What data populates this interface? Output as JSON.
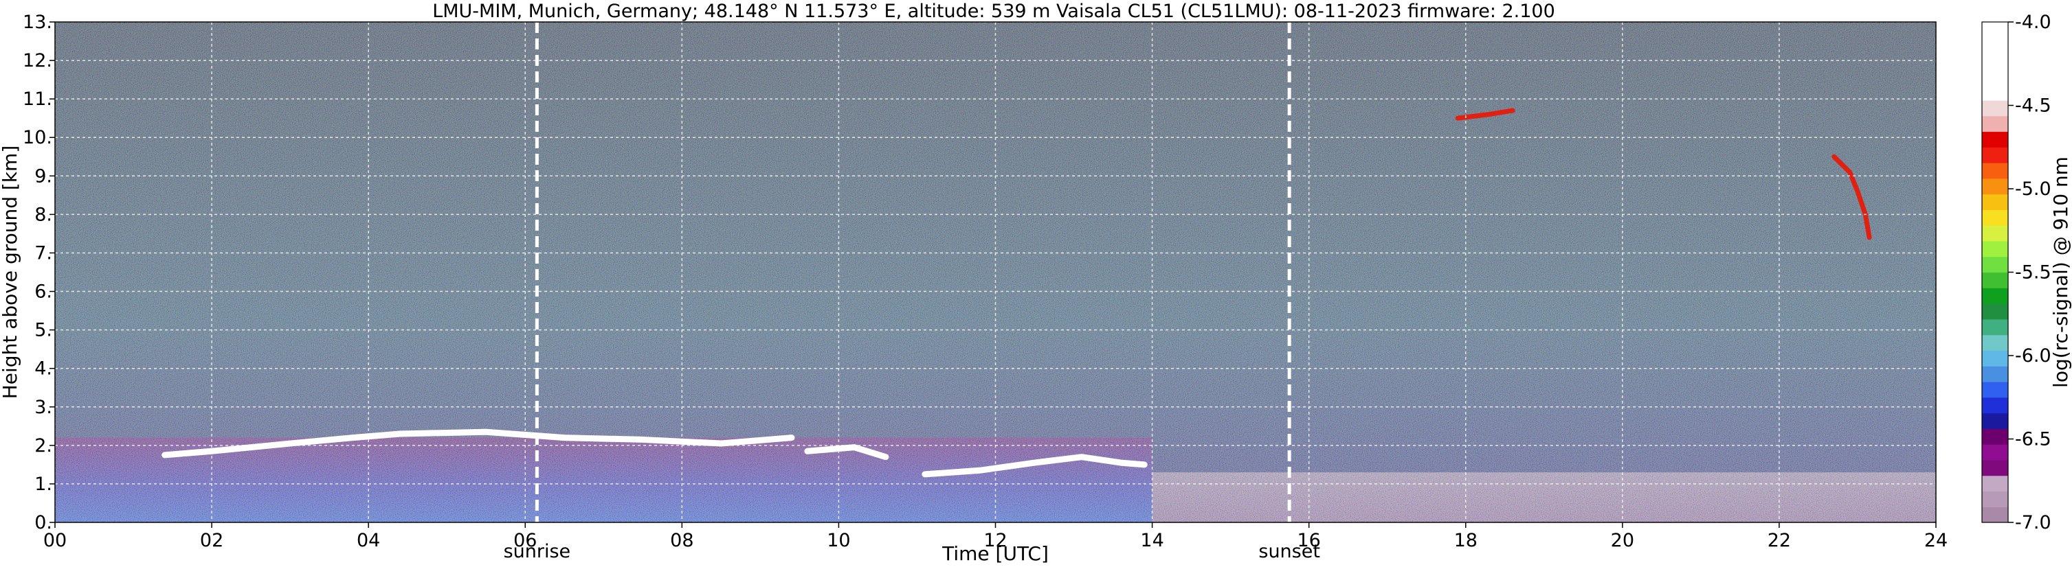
{
  "chart_data": {
    "type": "heatmap",
    "title": "LMU-MIM, Munich, Germany; 48.148° N 11.573° E, altitude: 539 m    Vaisala CL51 (CL51LMU): 08-11-2023    firmware: 2.100",
    "xlabel": "Time [UTC]",
    "ylabel": "Height above ground [km]",
    "xlim": [
      0,
      24
    ],
    "ylim": [
      0,
      13
    ],
    "x_ticks": [
      {
        "value": 0,
        "label": "00"
      },
      {
        "value": 2,
        "label": "02"
      },
      {
        "value": 4,
        "label": "04"
      },
      {
        "value": 6,
        "label": "06"
      },
      {
        "value": 8,
        "label": "08"
      },
      {
        "value": 10,
        "label": "10"
      },
      {
        "value": 12,
        "label": "12"
      },
      {
        "value": 14,
        "label": "14"
      },
      {
        "value": 16,
        "label": "16"
      },
      {
        "value": 18,
        "label": "18"
      },
      {
        "value": 20,
        "label": "20"
      },
      {
        "value": 22,
        "label": "22"
      },
      {
        "value": 24,
        "label": "24"
      }
    ],
    "y_ticks": [
      {
        "value": 0,
        "label": "0."
      },
      {
        "value": 1,
        "label": "1."
      },
      {
        "value": 2,
        "label": "2."
      },
      {
        "value": 3,
        "label": "3."
      },
      {
        "value": 4,
        "label": "4."
      },
      {
        "value": 5,
        "label": "5."
      },
      {
        "value": 6,
        "label": "6."
      },
      {
        "value": 7,
        "label": "7."
      },
      {
        "value": 8,
        "label": "8."
      },
      {
        "value": 9,
        "label": "9."
      },
      {
        "value": 10,
        "label": "10."
      },
      {
        "value": 11,
        "label": "11."
      },
      {
        "value": 12,
        "label": "12."
      },
      {
        "value": 13,
        "label": "13."
      }
    ],
    "grid": true,
    "events": [
      {
        "label": "sunrise",
        "time": 6.15
      },
      {
        "label": "sunset",
        "time": 15.75
      }
    ],
    "colorbar": {
      "label": "log(rc-signal) @ 910 nm",
      "range": [
        -7.0,
        -4.0
      ],
      "ticks": [
        {
          "value": -4.0,
          "label": "-4.0"
        },
        {
          "value": -4.5,
          "label": "-4.5"
        },
        {
          "value": -5.0,
          "label": "-5.0"
        },
        {
          "value": -5.5,
          "label": "-5.5"
        },
        {
          "value": -6.0,
          "label": "-6.0"
        },
        {
          "value": -6.5,
          "label": "-6.5"
        },
        {
          "value": -7.0,
          "label": "-7.0"
        }
      ],
      "colors": [
        "#a88aa8",
        "#b79ab7",
        "#c4a9c4",
        "#7e0a7e",
        "#900c90",
        "#6e006e",
        "#1a1aa0",
        "#2030d8",
        "#3060f0",
        "#4a90e0",
        "#60b8e8",
        "#70c8c8",
        "#40b080",
        "#209040",
        "#10a020",
        "#40c030",
        "#70e040",
        "#a0f040",
        "#d8f040",
        "#f8e020",
        "#f8c010",
        "#f89010",
        "#f86010",
        "#f02010",
        "#e00000",
        "#f0b0b0",
        "#f0d8d8",
        "#ffffff",
        "#ffffff",
        "#ffffff",
        "#ffffff",
        "#ffffff"
      ]
    },
    "features": [
      {
        "kind": "boundary layer top (cloud)",
        "color": "#ffffff",
        "points": [
          [
            1.4,
            1.75
          ],
          [
            2.0,
            1.85
          ],
          [
            3.0,
            2.05
          ],
          [
            3.8,
            2.2
          ],
          [
            4.4,
            2.3
          ],
          [
            5.5,
            2.35
          ],
          [
            6.5,
            2.2
          ],
          [
            7.5,
            2.15
          ],
          [
            8.5,
            2.05
          ],
          [
            9.4,
            2.2
          ]
        ]
      },
      {
        "kind": "boundary layer top (cloud)",
        "color": "#ffffff",
        "points": [
          [
            9.6,
            1.85
          ],
          [
            10.2,
            1.95
          ],
          [
            10.6,
            1.7
          ]
        ]
      },
      {
        "kind": "boundary layer top (cloud)",
        "color": "#ffffff",
        "points": [
          [
            11.1,
            1.25
          ],
          [
            11.8,
            1.35
          ],
          [
            12.5,
            1.55
          ],
          [
            13.1,
            1.7
          ],
          [
            13.6,
            1.55
          ],
          [
            13.9,
            1.5
          ]
        ]
      },
      {
        "kind": "cirrus",
        "color": "#e02010",
        "points": [
          [
            17.9,
            10.5
          ],
          [
            18.3,
            10.6
          ],
          [
            18.6,
            10.7
          ]
        ]
      },
      {
        "kind": "cirrus",
        "color": "#e02010",
        "points": [
          [
            22.7,
            9.5
          ],
          [
            22.9,
            9.1
          ],
          [
            23.0,
            8.6
          ],
          [
            23.1,
            8.0
          ],
          [
            23.15,
            7.4
          ]
        ]
      }
    ]
  }
}
